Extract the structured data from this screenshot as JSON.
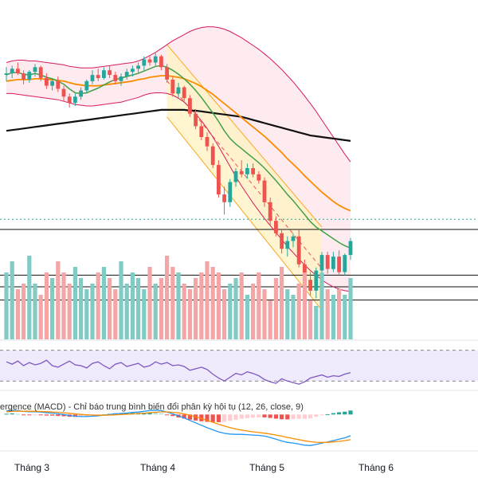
{
  "colors": {
    "up": "#26a69a",
    "down": "#ef5350",
    "up_vol": "#80cbc4",
    "down_vol": "#f4a6a6",
    "ma_fast": "#43a047",
    "ma_mid": "#fb8c00",
    "ma_long": "#111111",
    "bb_line": "#d81b60",
    "bb_fill": "#fde8ec",
    "channel_fill": "#fff3c4",
    "channel_line": "#f9a825",
    "rsi_line": "#7e57c2",
    "rsi_band": "#efeafc",
    "macd_line": "#2196f3",
    "signal_line": "#fb8c00",
    "hline": "#111111",
    "dotted_line": "#26a69a"
  },
  "chart_data": [
    {
      "type": "candlestick",
      "panel": "price",
      "x_tick_labels": [
        "Tháng 3",
        "Tháng 4",
        "Tháng 5",
        "Tháng 6"
      ],
      "ylim": [
        66,
        105
      ],
      "candles": [
        [
          97.4,
          98.4,
          96.6,
          97.6
        ],
        [
          97.6,
          98.6,
          97,
          98.2
        ],
        [
          98.2,
          99,
          97.4,
          97.6
        ],
        [
          97.6,
          98,
          96.2,
          96.8
        ],
        [
          96.8,
          98,
          96.4,
          97.8
        ],
        [
          97.8,
          98.8,
          97.2,
          98.4
        ],
        [
          98.4,
          98.6,
          96.6,
          97
        ],
        [
          97,
          97.6,
          95.6,
          96
        ],
        [
          96,
          97,
          95.4,
          96.6
        ],
        [
          96.6,
          97.2,
          95.2,
          95.6
        ],
        [
          95.6,
          96,
          94,
          94.6
        ],
        [
          94.6,
          95,
          93.2,
          93.8
        ],
        [
          93.8,
          95,
          93.4,
          94.6
        ],
        [
          94.6,
          95.8,
          94.2,
          95.4
        ],
        [
          95.4,
          96.8,
          95,
          96.6
        ],
        [
          96.6,
          98,
          96.2,
          97.4
        ],
        [
          97.4,
          98.2,
          96.6,
          97
        ],
        [
          97,
          98.4,
          96.8,
          98
        ],
        [
          98,
          98.6,
          97,
          97.4
        ],
        [
          97.4,
          97.8,
          96.2,
          96.6
        ],
        [
          96.6,
          97.6,
          96,
          97.2
        ],
        [
          97.2,
          98.2,
          96.8,
          97.8
        ],
        [
          97.8,
          98.6,
          97.2,
          98.2
        ],
        [
          98.2,
          99,
          97.6,
          98.6
        ],
        [
          98.6,
          99.8,
          98,
          99.4
        ],
        [
          99.4,
          99.8,
          98.6,
          99
        ],
        [
          99,
          100.2,
          98.6,
          99.8
        ],
        [
          99.8,
          100,
          98,
          98.4
        ],
        [
          98.4,
          98.8,
          96.4,
          96.8
        ],
        [
          96.8,
          97.2,
          94.6,
          95
        ],
        [
          95,
          96.4,
          94.4,
          95.8
        ],
        [
          95.8,
          96,
          94,
          94.4
        ],
        [
          94.4,
          94.8,
          92,
          92.4
        ],
        [
          92.4,
          93,
          90.4,
          90.8
        ],
        [
          90.8,
          91.4,
          89,
          89.4
        ],
        [
          89.4,
          90,
          87.6,
          88.2
        ],
        [
          88.2,
          88.6,
          85.4,
          85.8
        ],
        [
          85.8,
          86.4,
          81.6,
          82
        ],
        [
          82,
          83,
          79.4,
          81
        ],
        [
          81,
          84,
          80.4,
          83.6
        ],
        [
          83.6,
          85.4,
          83,
          85
        ],
        [
          85,
          86.4,
          84.2,
          84.6
        ],
        [
          84.6,
          86,
          84,
          85.4
        ],
        [
          85.4,
          86,
          84.2,
          84.6
        ],
        [
          84.6,
          85,
          83.4,
          83.8
        ],
        [
          83.8,
          84.2,
          80.4,
          81
        ],
        [
          81,
          81.6,
          78,
          78.6
        ],
        [
          78.6,
          79.2,
          76.6,
          77
        ],
        [
          77,
          77.6,
          74.4,
          75
        ],
        [
          75,
          76.6,
          74,
          76
        ],
        [
          76,
          77,
          75.2,
          76.6
        ],
        [
          76.6,
          77.4,
          72.6,
          73
        ],
        [
          73,
          73.6,
          70.4,
          71
        ],
        [
          71,
          72,
          69,
          69.6
        ],
        [
          69.6,
          72.6,
          68.6,
          72.2
        ],
        [
          72.2,
          74.6,
          71.6,
          74.2
        ],
        [
          74.2,
          74.6,
          71.8,
          72.4
        ],
        [
          72.4,
          74.6,
          72,
          74
        ],
        [
          74,
          74.8,
          71.6,
          72
        ],
        [
          72,
          74.4,
          71.6,
          74.2
        ],
        [
          74.2,
          76.4,
          73.6,
          76
        ]
      ],
      "ma_fast": [
        97.4,
        97.7,
        97.7,
        97.5,
        97.4,
        97.6,
        97.4,
        97.1,
        96.9,
        96.6,
        96.2,
        95.6,
        95.1,
        95.0,
        95.1,
        95.4,
        95.7,
        96.1,
        96.5,
        96.8,
        97.0,
        97.2,
        97.4,
        97.6,
        97.9,
        98.2,
        98.5,
        98.6,
        98.4,
        98.0,
        97.5,
        96.9,
        96.2,
        95.4,
        94.5,
        93.5,
        92.5,
        91.4,
        90.2,
        89.2,
        88.5,
        87.9,
        87.3,
        86.7,
        86.1,
        85.4,
        84.6,
        83.8,
        82.9,
        82.0,
        81.2,
        80.3,
        79.4,
        78.5,
        77.8,
        77.3,
        76.8,
        76.3,
        75.8,
        75.4,
        75.1
      ],
      "ma_mid": [
        96.6,
        96.7,
        96.8,
        96.8,
        96.8,
        96.9,
        96.9,
        96.8,
        96.8,
        96.7,
        96.6,
        96.4,
        96.2,
        96.1,
        96.0,
        96.0,
        96.0,
        96.1,
        96.2,
        96.3,
        96.4,
        96.5,
        96.6,
        96.8,
        96.9,
        97.1,
        97.2,
        97.3,
        97.3,
        97.2,
        97.1,
        96.9,
        96.6,
        96.3,
        95.9,
        95.4,
        94.9,
        94.3,
        93.7,
        93.1,
        92.5,
        91.9,
        91.3,
        90.7,
        90.1,
        89.5,
        88.8,
        88.1,
        87.4,
        86.6,
        85.9,
        85.2,
        84.4,
        83.7,
        83.0,
        82.3,
        81.7,
        81.1,
        80.6,
        80.2,
        79.9
      ],
      "ma_long": [
        90.2,
        90.3,
        90.4,
        90.5,
        90.6,
        90.7,
        90.8,
        90.9,
        91.0,
        91.1,
        91.2,
        91.3,
        91.4,
        91.5,
        91.6,
        91.7,
        91.8,
        91.9,
        92.0,
        92.1,
        92.2,
        92.3,
        92.4,
        92.5,
        92.6,
        92.7,
        92.8,
        92.9,
        92.9,
        92.9,
        92.9,
        92.9,
        92.8,
        92.8,
        92.7,
        92.6,
        92.5,
        92.4,
        92.3,
        92.2,
        92.1,
        92.0,
        91.8,
        91.6,
        91.4,
        91.2,
        91.0,
        90.8,
        90.6,
        90.4,
        90.2,
        90.0,
        89.8,
        89.6,
        89.5,
        89.4,
        89.3,
        89.2,
        89.1,
        89.0,
        88.9
      ],
      "bb_upper": [
        99.0,
        99.2,
        99.3,
        99.3,
        99.2,
        99.2,
        99.1,
        99.0,
        98.9,
        98.8,
        98.7,
        98.5,
        98.4,
        98.3,
        98.3,
        98.3,
        98.4,
        98.5,
        98.6,
        98.7,
        98.8,
        98.9,
        99.0,
        99.2,
        99.5,
        99.9,
        100.3,
        100.8,
        101.3,
        101.8,
        102.2,
        102.6,
        103.0,
        103.3,
        103.5,
        103.6,
        103.6,
        103.5,
        103.3,
        103.0,
        102.6,
        102.2,
        101.7,
        101.2,
        100.7,
        100.1,
        99.5,
        98.8,
        98.1,
        97.3,
        96.5,
        95.6,
        94.7,
        93.7,
        92.7,
        91.6,
        90.5,
        89.4,
        88.3,
        87.2,
        86.2
      ],
      "bb_lower": [
        95.0,
        95.0,
        94.9,
        94.8,
        94.7,
        94.6,
        94.5,
        94.4,
        94.3,
        94.2,
        94.0,
        93.8,
        93.6,
        93.5,
        93.4,
        93.4,
        93.5,
        93.6,
        93.7,
        93.8,
        93.9,
        94.1,
        94.3,
        94.5,
        94.8,
        95.0,
        95.1,
        95.1,
        95.0,
        94.8,
        94.4,
        93.9,
        93.2,
        92.4,
        91.5,
        90.5,
        89.4,
        88.2,
        86.9,
        85.6,
        84.3,
        83.1,
        82.0,
        80.9,
        79.9,
        78.9,
        78.0,
        77.1,
        76.2,
        75.3,
        74.5,
        73.7,
        72.9,
        72.2,
        71.6,
        71.0,
        70.5,
        70.1,
        69.8,
        69.6,
        69.5
      ],
      "hlines": [
        77.5,
        71.6,
        70.1,
        68.4
      ],
      "dotted_level": 78.8,
      "channel": {
        "i_start": 28,
        "i_end": 55,
        "upper": [
          101.3,
          77.8
        ],
        "lower": [
          92.0,
          67.1
        ]
      }
    },
    {
      "type": "bar",
      "panel": "volume",
      "values": [
        12,
        14,
        9,
        10,
        15,
        10,
        8,
        12,
        11,
        14,
        12,
        10,
        13,
        11,
        9,
        10,
        12,
        13,
        11,
        9,
        14,
        10,
        12,
        11,
        9,
        13,
        10,
        11,
        15,
        13,
        12,
        10,
        9,
        11,
        12,
        14,
        13,
        12,
        9,
        10,
        11,
        12,
        8,
        10,
        12,
        9,
        7,
        11,
        13,
        9,
        8,
        10,
        12,
        7,
        6,
        12,
        9,
        8,
        9,
        8,
        11
      ]
    },
    {
      "type": "line",
      "panel": "rsi",
      "ylim": [
        20,
        80
      ],
      "band": [
        30,
        70
      ],
      "values": [
        55,
        52,
        56,
        50,
        54,
        51,
        53,
        57,
        50,
        48,
        52,
        56,
        51,
        50,
        47,
        53,
        55,
        50,
        46,
        52,
        54,
        49,
        51,
        53,
        48,
        50,
        55,
        52,
        54,
        50,
        51,
        49,
        44,
        46,
        48,
        45,
        39,
        34,
        30,
        35,
        40,
        38,
        42,
        40,
        37,
        32,
        29,
        27,
        33,
        30,
        28,
        26,
        29,
        34,
        36,
        38,
        35,
        37,
        36,
        39,
        41
      ]
    },
    {
      "type": "line",
      "panel": "macd",
      "title": "ergence (MACD) - Chỉ báo trung bình biến đổi phân kỳ hội tụ (12, 26, close, 9)",
      "ylim": [
        -5,
        3
      ],
      "macd": [
        0.5,
        0.6,
        0.55,
        0.45,
        0.4,
        0.4,
        0.35,
        0.25,
        0.2,
        0.1,
        0.0,
        -0.15,
        -0.25,
        -0.3,
        -0.3,
        -0.25,
        -0.2,
        -0.1,
        0.0,
        0.1,
        0.15,
        0.2,
        0.3,
        0.35,
        0.45,
        0.55,
        0.6,
        0.55,
        0.35,
        0.1,
        -0.2,
        -0.5,
        -0.85,
        -1.2,
        -1.55,
        -1.9,
        -2.2,
        -2.5,
        -2.7,
        -2.8,
        -2.85,
        -2.85,
        -2.9,
        -2.95,
        -3.0,
        -3.1,
        -3.3,
        -3.55,
        -3.8,
        -4.0,
        -4.1,
        -4.25,
        -4.4,
        -4.45,
        -4.3,
        -4.1,
        -3.95,
        -3.75,
        -3.55,
        -3.35,
        -3.05
      ],
      "signal": [
        0.4,
        0.45,
        0.48,
        0.47,
        0.46,
        0.45,
        0.43,
        0.4,
        0.36,
        0.31,
        0.25,
        0.17,
        0.09,
        0.01,
        -0.05,
        -0.09,
        -0.11,
        -0.11,
        -0.09,
        -0.05,
        -0.01,
        0.03,
        0.08,
        0.13,
        0.19,
        0.26,
        0.32,
        0.37,
        0.37,
        0.32,
        0.22,
        0.08,
        -0.11,
        -0.33,
        -0.58,
        -0.85,
        -1.12,
        -1.4,
        -1.66,
        -1.89,
        -2.08,
        -2.24,
        -2.37,
        -2.49,
        -2.59,
        -2.69,
        -2.81,
        -2.96,
        -3.12,
        -3.3,
        -3.46,
        -3.62,
        -3.78,
        -3.9,
        -3.98,
        -4.0,
        -3.99,
        -3.94,
        -3.86,
        -3.76,
        -3.62
      ]
    }
  ]
}
